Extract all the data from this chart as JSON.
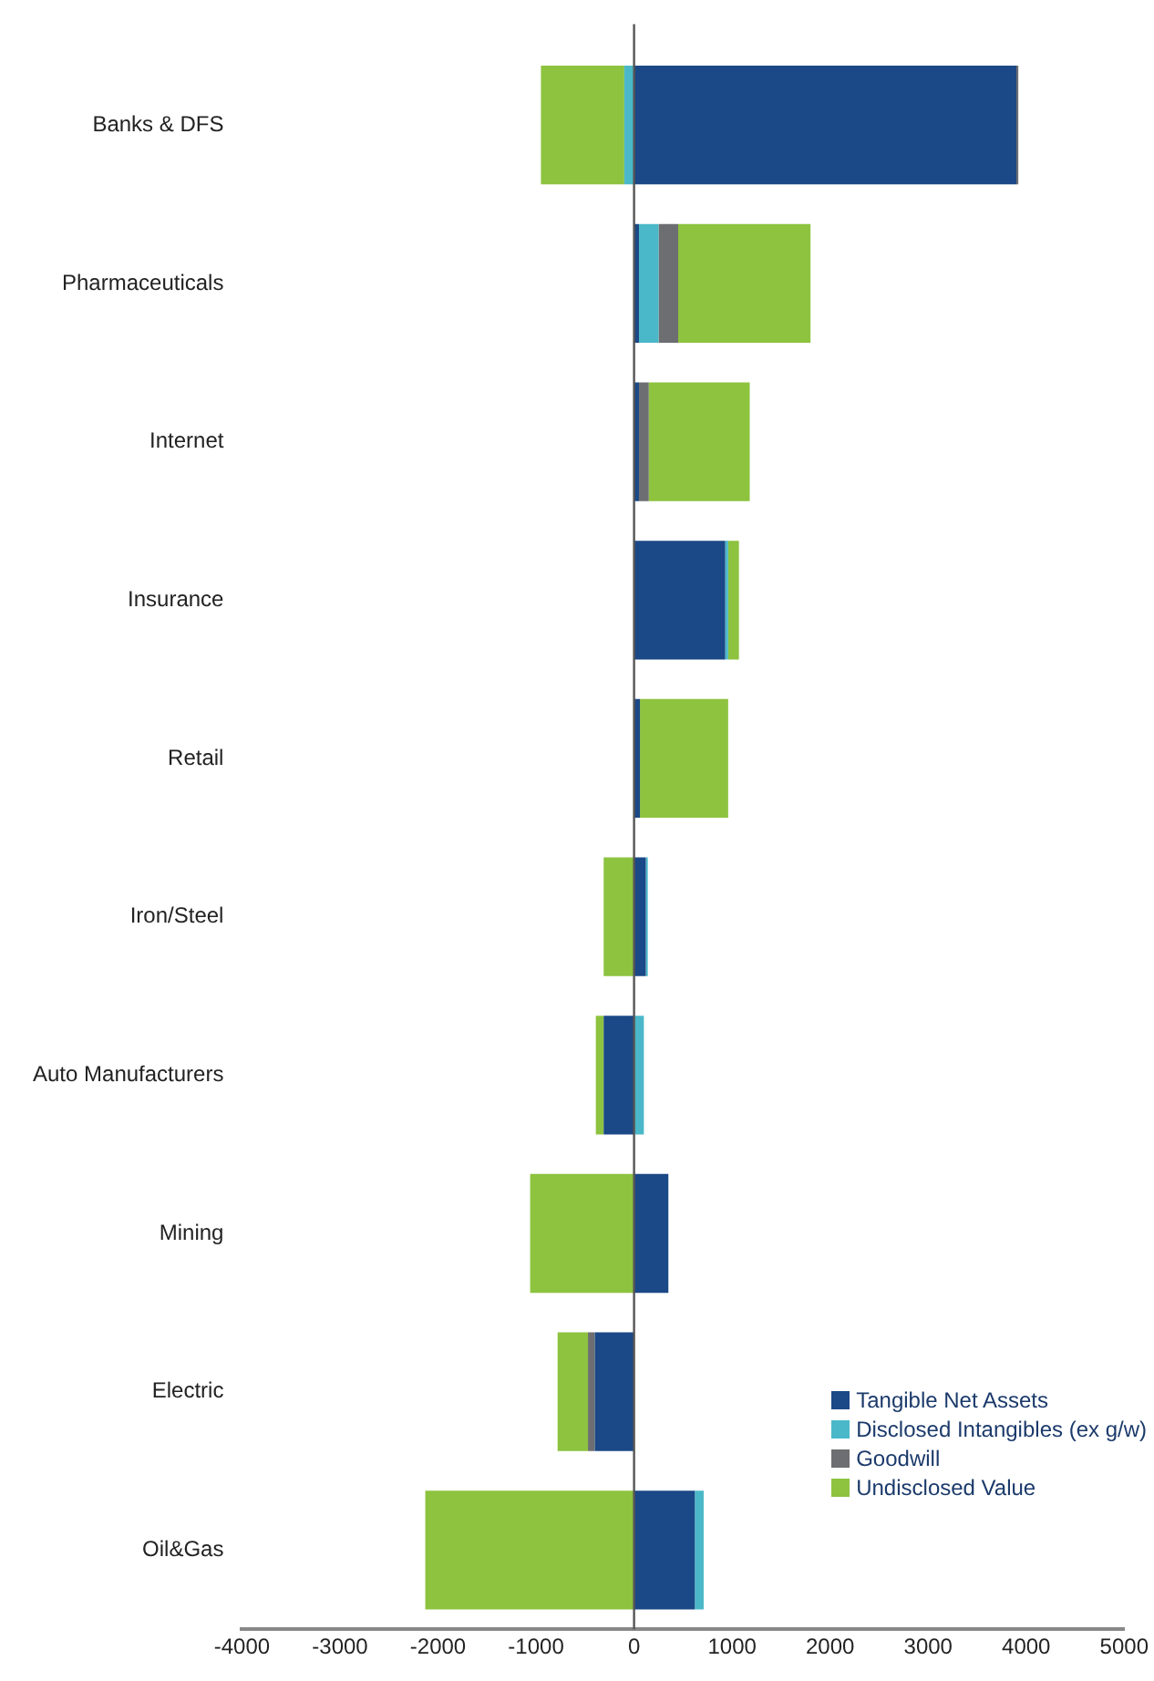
{
  "chart_data": {
    "type": "bar",
    "orientation": "horizontal",
    "stacked": true,
    "categories": [
      "Banks & DFS",
      "Pharmaceuticals",
      "Internet",
      "Insurance",
      "Retail",
      "Iron/Steel",
      "Auto Manufacturers",
      "Mining",
      "Electric",
      "Oil&Gas"
    ],
    "series": [
      {
        "name": "Tangible Net Assets",
        "color": "#1b4886",
        "values": [
          3900,
          50,
          50,
          930,
          60,
          120,
          -310,
          350,
          -400,
          620
        ]
      },
      {
        "name": "Disclosed Intangibles (ex g/w)",
        "color": "#4ab8c8",
        "values": [
          -100,
          200,
          null,
          30,
          null,
          20,
          100,
          null,
          null,
          90
        ]
      },
      {
        "name": "Goodwill",
        "color": "#6d6e71",
        "values": [
          20,
          200,
          100,
          null,
          null,
          null,
          null,
          null,
          -70,
          null
        ]
      },
      {
        "name": "Undisclosed Value",
        "color": "#8dc33f",
        "values": [
          -850,
          1350,
          1030,
          110,
          900,
          -310,
          -80,
          -1060,
          -310,
          -2130
        ]
      }
    ],
    "xlim": [
      -4000,
      5000
    ],
    "xticks": [
      -4000,
      -3000,
      -2000,
      -1000,
      0,
      1000,
      2000,
      3000,
      4000,
      5000
    ],
    "ref_lines": [
      {
        "axis": "x",
        "value": 0
      }
    ],
    "grid": false,
    "legend": "bottom right"
  }
}
